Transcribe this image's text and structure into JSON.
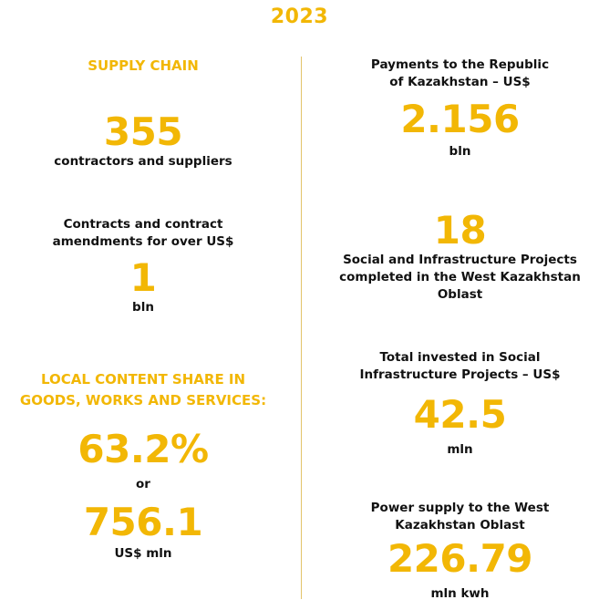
{
  "year": "2023",
  "left": {
    "supply_chain_title": "SUPPLY CHAIN",
    "contractors_value": "355",
    "contractors_label": "contractors and suppliers",
    "contracts_label_line1": "Contracts and contract",
    "contracts_label_line2": "amendments for over US$",
    "contracts_value": "1",
    "contracts_unit": "bln",
    "local_content_title_line1": "LOCAL CONTENT SHARE IN",
    "local_content_title_line2": "GOODS, WORKS AND SERVICES:",
    "local_content_percent": "63.2%",
    "or_text": "or",
    "local_content_amount": "756.1",
    "local_content_unit": "US$ mln"
  },
  "right": {
    "payments_label_line1": "Payments to the Republic",
    "payments_label_line2": "of Kazakhstan – US$",
    "payments_value": "2.156",
    "payments_unit": "bln",
    "projects_value": "18",
    "projects_label_line1": "Social and Infrastructure Projects",
    "projects_label_line2": "completed in the West Kazakhstan",
    "projects_label_line3": "Oblast",
    "invested_label_line1": "Total invested in Social",
    "invested_label_line2": "Infrastructure Projects – US$",
    "invested_value": "42.5",
    "invested_unit": "mln",
    "power_label_line1": "Power supply to the West",
    "power_label_line2": "Kazakhstan Oblast",
    "power_value": "226.79",
    "power_unit": "mln kwh"
  },
  "colors": {
    "accent": "#f2b705",
    "text": "#111111",
    "divider": "#e3c46a"
  }
}
